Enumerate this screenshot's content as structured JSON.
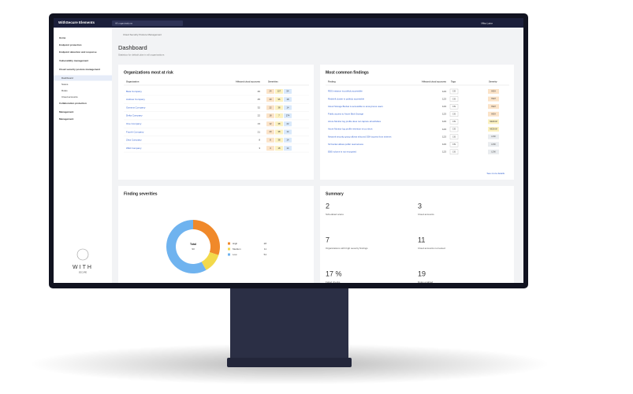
{
  "topbar": {
    "brand": "WithSecure Elements",
    "search": "All organizations",
    "user": "Mika Laine"
  },
  "sidebar": {
    "items": [
      "Home",
      "Endpoint protection",
      "Endpoint detection and response",
      "Vulnerability management",
      "Cloud security posture management",
      "Dashboard",
      "Scans",
      "Rules",
      "Cloud accounts",
      "Collaboration protection",
      "Management",
      "Management"
    ],
    "logo": "WITH",
    "logo_sub": "SECURE"
  },
  "breadcrumb": "Cloud Security Posture Management",
  "page": {
    "title": "Dashboard",
    "subtitle": "Statistics for default plan in all organizations"
  },
  "risk_table": {
    "title": "Organizations most at risk",
    "columns": [
      "Organization",
      "Affected cloud accounts",
      "Severities"
    ],
    "rows": [
      [
        "Beta Company",
        46,
        24,
        227,
        54
      ],
      [
        "Andrew Company",
        45,
        40,
        96,
        18
      ],
      [
        "Gamma Company",
        32,
        22,
        38,
        14
      ],
      [
        "Delta Company",
        22,
        18,
        7,
        274
      ],
      [
        "One Company",
        13,
        12,
        38,
        22
      ],
      [
        "Fourth Company",
        21,
        20,
        38,
        14
      ],
      [
        "Zeta Company",
        8,
        8,
        38,
        14
      ],
      [
        "Wild Company",
        3,
        3,
        18,
        14
      ]
    ]
  },
  "findings": {
    "title": "Most common findings",
    "columns": [
      "Finding",
      "Affected cloud accounts",
      "Tags",
      "Severity"
    ],
    "rows": [
      [
        "RDS instance is publicly accessible",
        123,
        "CIS",
        "HIGH"
      ],
      [
        "Redshift cluster is publicly accessible",
        123,
        "CIS",
        "HIGH"
      ],
      [
        "Cloud Storage Bucket is accessible to anonymous users",
        123,
        "CIS",
        "HIGH"
      ],
      [
        "Public access to Azure Blob Storage",
        123,
        "CIS",
        "HIGH"
      ],
      [
        "Azure Monitor log profile does not capture all activities",
        123,
        "CIS",
        "MEDIUM"
      ],
      [
        "Azure Monitor log profile retention is too short",
        123,
        "CIS",
        "MEDIUM"
      ],
      [
        "Network security group allows inbound SSH access from internet",
        123,
        "CIS",
        "LOW"
      ],
      [
        "S3 bucket allows public read access",
        123,
        "CIS",
        "LOW"
      ],
      [
        "EBS volume is not encrypted",
        123,
        "CIS",
        "LOW"
      ]
    ],
    "see_more": "See more details"
  },
  "severities": {
    "title": "Finding severities",
    "center_label": "Total",
    "center_value": 93,
    "legend": [
      {
        "name": "High",
        "color": "#f0892a",
        "value": 28
      },
      {
        "name": "Medium",
        "color": "#f2d94b",
        "value": 11
      },
      {
        "name": "Low",
        "color": "#6fb3ef",
        "value": 54
      }
    ]
  },
  "summary": {
    "title": "Summary",
    "items": [
      {
        "value": "2",
        "label": "Scheduled scans"
      },
      {
        "value": "3",
        "label": "Cloud accounts"
      },
      {
        "value": "7",
        "label": "Organizations with high severity findings"
      },
      {
        "value": "11",
        "label": "Cloud accounts not tested"
      },
      {
        "value": "17 %",
        "label": "Failed checks"
      },
      {
        "value": "19",
        "label": "Rules enabled"
      }
    ]
  }
}
